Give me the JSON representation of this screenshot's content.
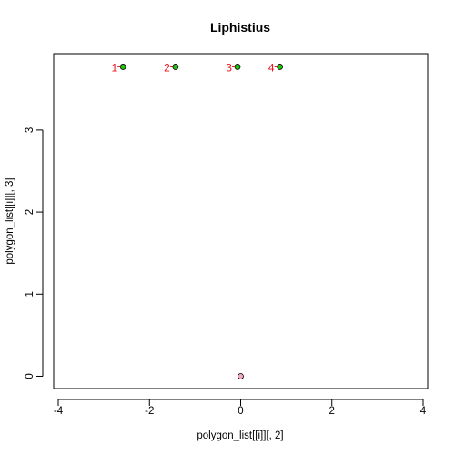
{
  "chart_data": {
    "type": "scatter",
    "title": "Liphistius",
    "xlabel": "polygon_list[[i]][, 2]",
    "ylabel": "polygon_list[[i]][, 3]",
    "xlim": [
      -4.1,
      4.1
    ],
    "ylim": [
      -0.15,
      3.93
    ],
    "xticks": [
      -4,
      -2,
      0,
      2,
      4
    ],
    "yticks": [
      0,
      1,
      2,
      3
    ],
    "grid": false,
    "points": [
      {
        "label": "1",
        "x": -2.58,
        "y": 3.77,
        "fill": "#22c40e"
      },
      {
        "label": "2",
        "x": -1.43,
        "y": 3.77,
        "fill": "#22c40e"
      },
      {
        "label": "3",
        "x": -0.07,
        "y": 3.77,
        "fill": "#22c40e"
      },
      {
        "label": "4",
        "x": 0.86,
        "y": 3.77,
        "fill": "#22c40e"
      },
      {
        "label": "",
        "x": 0.0,
        "y": 0.0,
        "fill": "#f3a9bf"
      }
    ],
    "label_color": "#e8141c"
  }
}
